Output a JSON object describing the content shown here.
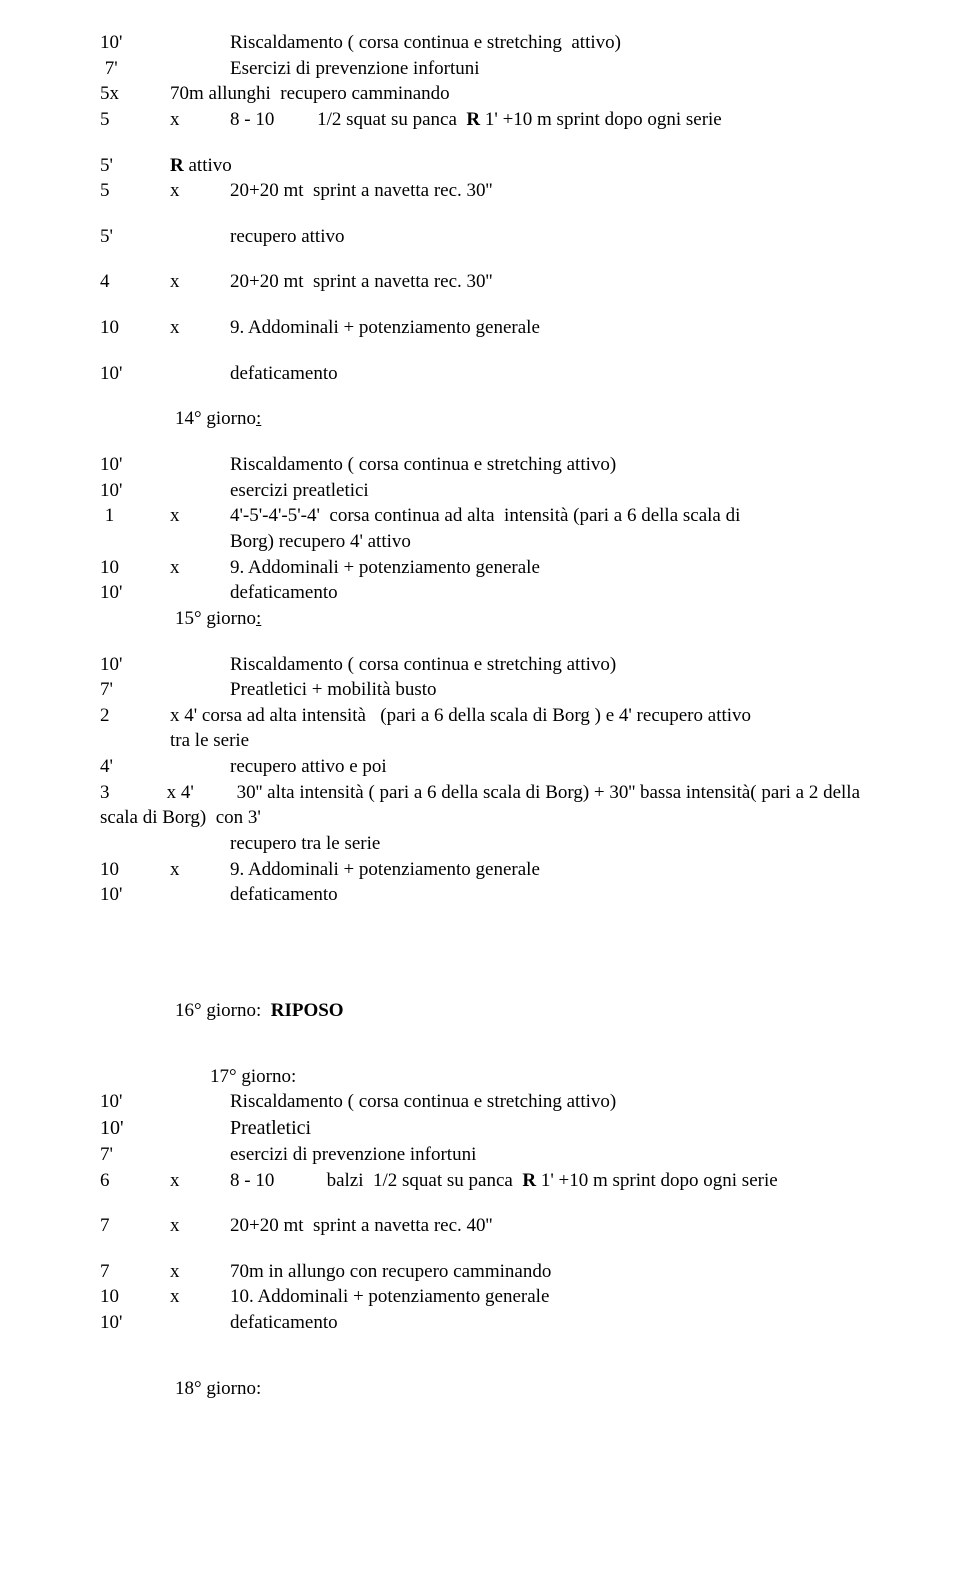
{
  "block1": {
    "l1a": "10'",
    "l1c": "Riscaldamento ( corsa continua e stretching  attivo)",
    "l2a": " 7'",
    "l2c": "Esercizi di prevenzione infortuni",
    "l3a": "5x",
    "l3b": "",
    "l3c": "70m allunghi  recupero camminando",
    "l4a": "5",
    "l4b": "x",
    "l4c": "8 - 10         1/2 squat su panca  ",
    "l4d": "R",
    "l4e": " 1' +10 m sprint dopo ogni serie"
  },
  "block2": {
    "l1a": "5'",
    "l1b": "",
    "l1c": "R",
    "l1d": " attivo",
    "l2a": "5",
    "l2b": "x",
    "l2c": "20+20 mt  sprint a navetta rec. 30''",
    "l3a": "5'",
    "l3c": "recupero attivo",
    "l4a": "4",
    "l4b": "x",
    "l4c": "20+20 mt  sprint a navetta rec. 30''",
    "l5a": "10",
    "l5b": "x",
    "l5c": "9. Addominali + potenziamento generale",
    "l6a": "10'",
    "l6c": "defaticamento"
  },
  "day14": {
    "title": "14° giorno",
    "colon": ":",
    "l1a": "10'",
    "l1c": "Riscaldamento ( corsa continua e stretching attivo)",
    "l2a": "10'",
    "l2c": "esercizi preatletici",
    "l3a": " 1",
    "l3b": "x",
    "l3c": "4'-5'-4'-5'-4'  corsa continua ad alta  intensità (pari a 6 della scala di",
    "l3c2": "Borg) recupero 4' attivo",
    "l4a": "10",
    "l4b": "x",
    "l4c": "9. Addominali + potenziamento generale",
    "l5a": "10'",
    "l5c": "defaticamento"
  },
  "day15": {
    "title": "15° giorno",
    "colon": ":",
    "l1a": "10'",
    "l1c": "Riscaldamento ( corsa continua e stretching attivo)",
    "l2a": "7'",
    "l2c": "Preatletici + mobilità busto",
    "l3a": "2",
    "l3b": "",
    "l3c": "x 4' corsa ad alta intensità   (pari a 6 della scala di Borg ) e 4' recupero attivo",
    "l3c2": "tra le serie",
    "l4a": "4'",
    "l4c": "recupero attivo e poi",
    "l5a": "3",
    "l5b": "",
    "l5c": "x 4'         30'' alta intensità ( pari a 6 della scala di Borg) + 30'' bassa intensità( pari a 2 della",
    "l5c2": "scala di Borg)  con 3'",
    "l5c3": "recupero tra le serie",
    "l6a": "10",
    "l6b": "x",
    "l6c": "9. Addominali + potenziamento generale",
    "l7a": "10'",
    "l7c": "defaticamento"
  },
  "day16": {
    "title": "16° giorno:  ",
    "bold": "RIPOSO"
  },
  "day17": {
    "title": "17° giorno:",
    "l1a": "10'",
    "l1c": "Riscaldamento ( corsa continua e stretching attivo)",
    "l2a": "10'",
    "l2c": "Preatletici",
    "l3a": "7'",
    "l3c": "esercizi di prevenzione infortuni",
    "l4a": "6",
    "l4b": "x",
    "l4c": "8 - 10           balzi  1/2 squat su panca  ",
    "l4d": "R",
    "l4e": " 1' +10 m sprint dopo ogni serie",
    "l5a": "7",
    "l5b": "x",
    "l5c": "20+20 mt  sprint a navetta rec. 40''",
    "l6a": "7",
    "l6b": "x",
    "l6c": "70m in allungo con recupero camminando",
    "l7a": "10",
    "l7b": "x",
    "l7c": "10. Addominali + potenziamento generale",
    "l8a": "10'",
    "l8c": "defaticamento"
  },
  "day18": {
    "title": "18° giorno:"
  }
}
